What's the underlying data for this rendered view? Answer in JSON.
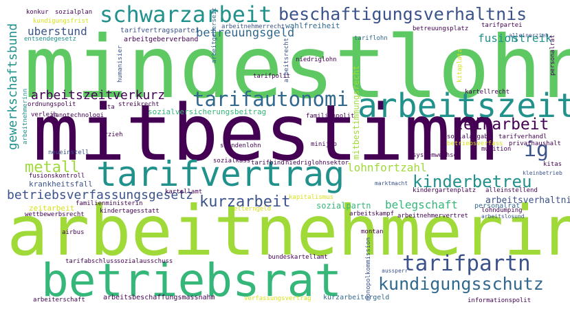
{
  "words": {
    "mindestlohn": "mindestlohn",
    "mitbestimm": "mitbestimm",
    "arbeitnehmerinn": "arbeitnehmerinn",
    "betriebsrat": "betriebsrat",
    "tarifvertrag": "tarifvertrag",
    "arbeitszeit": "arbeitszeit",
    "schwarzarbeit": "schwarzarbeit",
    "beschaftigungsverhaltnis": "beschaftigungsverhaltnis",
    "tarifautonomi": "tarifautonomi",
    "tarifpartn": "tarifpartn",
    "kundigungsschutz": "kundigungsschutz",
    "kinderbetreu": "kinderbetreu",
    "leiharbeit": "leiharbeit",
    "ig": "ig",
    "metall": "metall",
    "kurzarbeit": "kurzarbeit",
    "betriebsverfassungsgesetz": "betriebsverfassungsgesetz",
    "gewerkschaftsbund": "gewerkschaftsbund",
    "arbeitszeitverkurz": "arbeitszeitverkurz",
    "betreuungsgeld": "betreuungsgeld",
    "uberstund": "uberstund",
    "fusion": "fusion",
    "streik": "streik",
    "lohnfortzahl": "lohnfortzahl",
    "belegschaft": "belegschaft",
    "sozialversicherungsbeitrag": "sozialversicherungsbeitrag",
    "arbeitsverhaltnis": "arbeitsverhaltnis",
    "sozialpartn": "sozialpartn",
    "arbeitgeberverband": "arbeitgeberverband",
    "tarifvertragspartei": "tarifvertragspartei",
    "wahlfreiheit": "wahlfreiheit",
    "krankheitsfall": "krankheitsfall",
    "mitbestimmungsrecht": "mitbestimmungsrecht",
    "konkur": "konkur",
    "sozialplan": "sozialplan",
    "kundigungsfrist": "kundigungsfrist",
    "entsendegesetz": "entsendegesetz",
    "tariflohn": "tariflohn",
    "betreuungsplatz": "betreuungsplatz",
    "tarifpartei": "tarifpartei",
    "arbeitgeberseit": "arbeitgeberseit",
    "alleinerzieh": "alleinerzieh",
    "personalrat": "personalrat",
    "arbeitnehmerrecht": "arbeitnehmerrecht",
    "arbeitsrecht": "arbeitsrecht",
    "humanisier": "humanisier",
    "niedriglohn": "niedriglohn",
    "tarifpolit": "tarifpolit",
    "nanotechnologi": "nanotechnologi",
    "kartellrecht": "kartellrecht",
    "kita": "kita",
    "streikrecht": "streikrecht",
    "familienpolit": "familienpolit",
    "ordnungspolit": "ordnungspolit",
    "kitaplatz": "kitaplatz",
    "verleih": "verleih",
    "erzieh": "erzieh",
    "sozialabgab": "sozialabgab",
    "tarifverhandl": "tarifverhandl",
    "betriebsverfass": "betriebsverfass",
    "privathaushalt": "privathaushalt",
    "munition": "munition",
    "stundenlohn": "stundenlohn",
    "minijob": "minijob",
    "systemwechsel": "systemwechsel",
    "neueinstell": "neueinstell",
    "sozialkass": "sozialkass",
    "tarifbind": "tarifbind",
    "niedriglohnsektor": "niedriglohnsektor",
    "fusionskontroll": "fusionskontroll",
    "kitas": "kitas",
    "kleinbetrieb": "kleinbetrieb",
    "kartellamt": "kartellamt",
    "marktmacht": "marktmacht",
    "kindergartenplatz": "kindergartenplatz",
    "alleinstellend": "alleinstellend",
    "zeitarbeit": "zeitarbeit",
    "familienministerin": "familienministerin",
    "kapitalismus": "kapitalismus",
    "wettbewerbsrecht": "wettbewerbsrecht",
    "kindertagesstatt": "kindertagesstatt",
    "elterngeld": "elterngeld",
    "lohndumping": "lohndumping",
    "arbeitskampf": "arbeitskampf",
    "arbeitnehmervertret": "arbeitnehmervertret",
    "arbeitslosund": "arbeitslosund",
    "airbus": "airbus",
    "montan": "montan",
    "monopolkommission": "monopolkommission",
    "tarifabschluss": "tarifabschluss",
    "sozialausschuss": "sozialausschuss",
    "bundeskartellamt": "bundeskartellamt",
    "aussperr": "aussperr",
    "arbeiterschaft": "arbeiterschaft",
    "arbeitsbeschaffungsmassnahm": "arbeitsbeschaffungsmassnahm",
    "verfassungsvertrag": "verfassungsvertrag",
    "kurzarbeitergeld": "kurzarbeitergeld",
    "informationspolit": "informationspolit"
  },
  "colors": {
    "dark_purple": "#440154",
    "indigo": "#3b528b",
    "blue": "#31688e",
    "teal": "#21918c",
    "green": "#35b779",
    "lime": "#5ec962",
    "yellow_green": "#a0da39",
    "yellow": "#d8e219"
  }
}
